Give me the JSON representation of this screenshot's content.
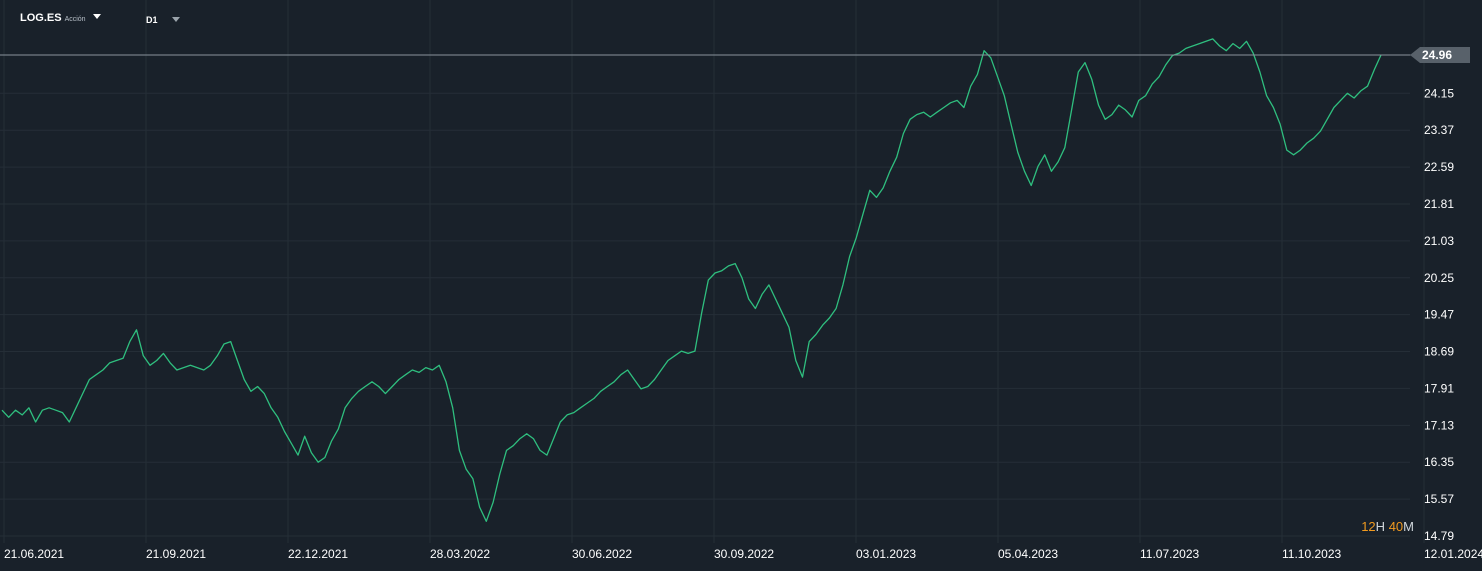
{
  "header": {
    "symbol": "LOG.ES",
    "instrument_type": "Acción",
    "timeframe": "D1"
  },
  "countdown": {
    "hours": "12",
    "h_unit": "H",
    "minutes": "40",
    "m_unit": "M"
  },
  "colors": {
    "background": "#19212a",
    "grid": "#252e37",
    "line": "#2fbf7f",
    "price_line": "#8a939c",
    "price_tag": "#58616a",
    "axis_text": "#ffffff",
    "accent": "#f19a1f"
  },
  "chart_data": {
    "type": "line",
    "title": "",
    "xlabel": "",
    "ylabel": "",
    "ylim": [
      14.79,
      25.74
    ],
    "y_ticks": [
      "24.96",
      "24.15",
      "23.37",
      "22.59",
      "21.81",
      "21.03",
      "20.25",
      "19.47",
      "18.69",
      "17.91",
      "17.13",
      "16.35",
      "15.57",
      "14.79"
    ],
    "x_ticks": [
      "21.06.2021",
      "21.09.2021",
      "22.12.2021",
      "28.03.2022",
      "30.06.2022",
      "30.09.2022",
      "03.01.2023",
      "05.04.2023",
      "11.07.2023",
      "11.10.2023",
      "12.01.2024"
    ],
    "current_price": "24.96",
    "grid": true,
    "series": [
      {
        "values": [
          17.45,
          17.3,
          17.45,
          17.35,
          17.5,
          17.2,
          17.45,
          17.5,
          17.45,
          17.4,
          17.2,
          17.5,
          17.8,
          18.1,
          18.2,
          18.3,
          18.45,
          18.5,
          18.55,
          18.9,
          19.15,
          18.6,
          18.4,
          18.5,
          18.65,
          18.45,
          18.3,
          18.35,
          18.4,
          18.35,
          18.3,
          18.4,
          18.6,
          18.85,
          18.9,
          18.5,
          18.1,
          17.85,
          17.95,
          17.8,
          17.5,
          17.3,
          17.0,
          16.75,
          16.5,
          16.9,
          16.55,
          16.35,
          16.45,
          16.8,
          17.05,
          17.5,
          17.7,
          17.85,
          17.95,
          18.05,
          17.95,
          17.8,
          17.95,
          18.1,
          18.2,
          18.3,
          18.25,
          18.35,
          18.3,
          18.4,
          18.05,
          17.5,
          16.6,
          16.2,
          16.0,
          15.4,
          15.1,
          15.5,
          16.1,
          16.6,
          16.7,
          16.85,
          16.95,
          16.85,
          16.6,
          16.5,
          16.85,
          17.2,
          17.35,
          17.4,
          17.5,
          17.6,
          17.7,
          17.85,
          17.95,
          18.05,
          18.2,
          18.3,
          18.1,
          17.9,
          17.95,
          18.1,
          18.3,
          18.5,
          18.6,
          18.7,
          18.65,
          18.7,
          19.5,
          20.2,
          20.35,
          20.4,
          20.5,
          20.55,
          20.25,
          19.8,
          19.6,
          19.9,
          20.1,
          19.8,
          19.5,
          19.2,
          18.5,
          18.15,
          18.9,
          19.05,
          19.25,
          19.4,
          19.6,
          20.1,
          20.7,
          21.1,
          21.6,
          22.1,
          21.95,
          22.15,
          22.5,
          22.8,
          23.3,
          23.6,
          23.7,
          23.75,
          23.65,
          23.75,
          23.85,
          23.95,
          24.0,
          23.85,
          24.3,
          24.55,
          25.05,
          24.9,
          24.5,
          24.1,
          23.5,
          22.9,
          22.5,
          22.2,
          22.6,
          22.85,
          22.5,
          22.7,
          23.0,
          23.8,
          24.6,
          24.8,
          24.45,
          23.9,
          23.6,
          23.7,
          23.9,
          23.8,
          23.65,
          24.0,
          24.1,
          24.35,
          24.5,
          24.75,
          24.95,
          25.0,
          25.1,
          25.15,
          25.2,
          25.25,
          25.3,
          25.15,
          25.05,
          25.2,
          25.1,
          25.25,
          25.0,
          24.6,
          24.1,
          23.85,
          23.5,
          22.95,
          22.85,
          22.95,
          23.1,
          23.2,
          23.35,
          23.6,
          23.85,
          24.0,
          24.15,
          24.05,
          24.2,
          24.3,
          24.65,
          24.96
        ]
      }
    ]
  }
}
